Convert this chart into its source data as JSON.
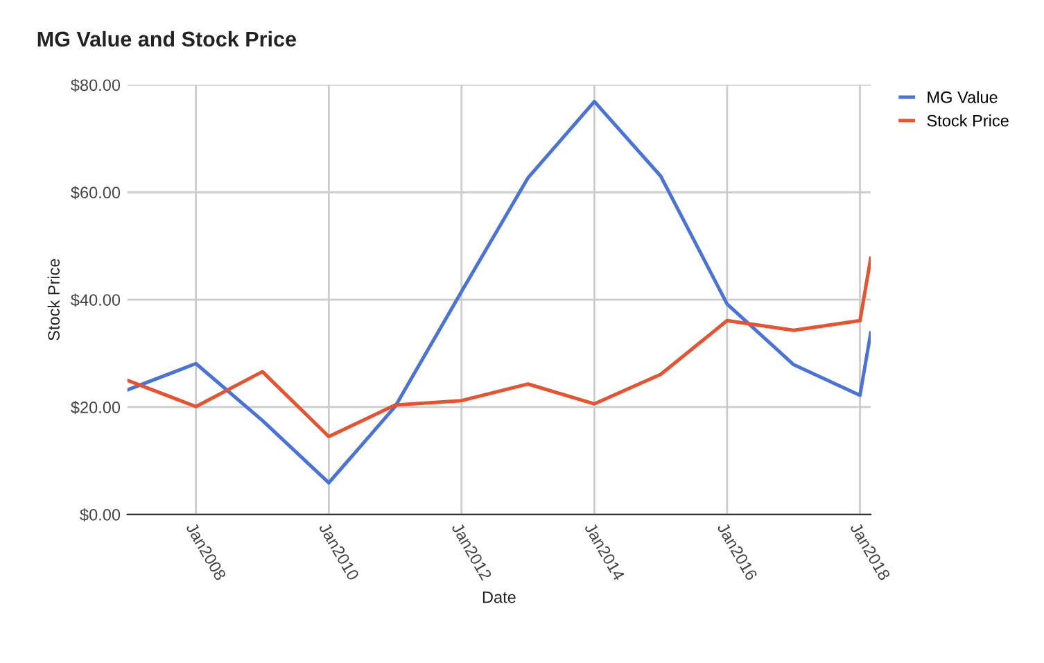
{
  "chart_data": {
    "type": "line",
    "title": "MG Value and Stock Price",
    "xlabel": "Date",
    "ylabel": "Stock Price",
    "x": [
      "2006-12-20",
      "2008-01-01",
      "2009-01-01",
      "2010-01-01",
      "2011-01-01",
      "2012-01-01",
      "2013-01-01",
      "2014-01-01",
      "2015-01-01",
      "2016-01-01",
      "2017-01-01",
      "2018-01-01",
      "2018-03-01"
    ],
    "series": [
      {
        "name": "MG Value",
        "color": "#4a73d9",
        "values": [
          23.2,
          28.1,
          17.5,
          5.9,
          20.1,
          41.5,
          62.7,
          76.9,
          63.0,
          39.2,
          27.9,
          22.2,
          33.8
        ]
      },
      {
        "name": "Stock Price",
        "color": "#e8522f",
        "values": [
          25.0,
          20.1,
          26.6,
          14.5,
          20.4,
          21.2,
          24.3,
          20.6,
          26.1,
          36.1,
          34.3,
          36.1,
          47.7
        ]
      }
    ],
    "xlim": [
      "2006-12-20",
      "2018-03-01"
    ],
    "xticks": [
      {
        "value": "2008-01-01",
        "label": "Jan2008"
      },
      {
        "value": "2010-01-01",
        "label": "Jan2010"
      },
      {
        "value": "2012-01-01",
        "label": "Jan2012"
      },
      {
        "value": "2014-01-01",
        "label": "Jan2014"
      },
      {
        "value": "2016-01-01",
        "label": "Jan2016"
      },
      {
        "value": "2018-01-01",
        "label": "Jan2018"
      }
    ],
    "ylim": [
      0,
      80
    ],
    "yticks": [
      {
        "value": 0,
        "label": "$0.00"
      },
      {
        "value": 20,
        "label": "$20.00"
      },
      {
        "value": 40,
        "label": "$40.00"
      },
      {
        "value": 60,
        "label": "$60.00"
      },
      {
        "value": 80,
        "label": "$80.00"
      }
    ],
    "grid": true,
    "legend": "top right",
    "marker": "none",
    "line_style": "solid"
  }
}
